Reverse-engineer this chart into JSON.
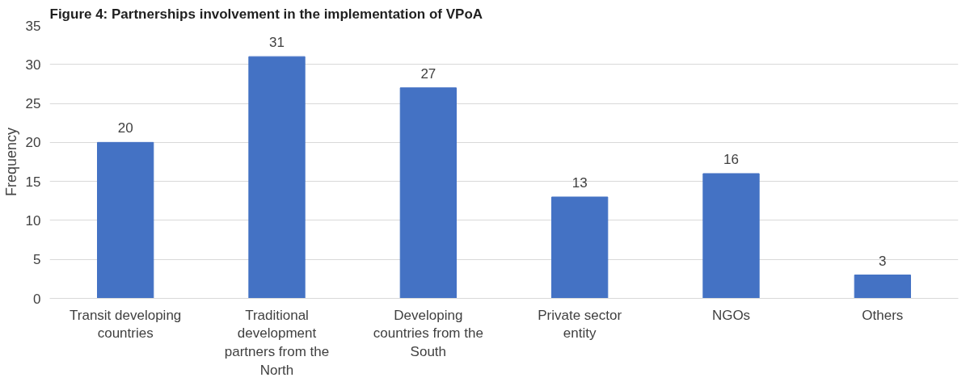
{
  "chart_data": {
    "type": "bar",
    "title": "Figure 4: Partnerships involvement in the implementation of VPoA",
    "ylabel": "Frequency",
    "categories": [
      "Transit developing countries",
      "Traditional development partners from the North",
      "Developing countries from the South",
      "Private sector entity",
      "NGOs",
      "Others"
    ],
    "values": [
      20,
      31,
      27,
      13,
      16,
      3
    ],
    "color": "#4472c4",
    "data_labels": true,
    "ylim": [
      0,
      35
    ],
    "yticks": [
      0,
      5,
      10,
      15,
      20,
      25,
      30,
      35
    ],
    "grid": "y"
  }
}
